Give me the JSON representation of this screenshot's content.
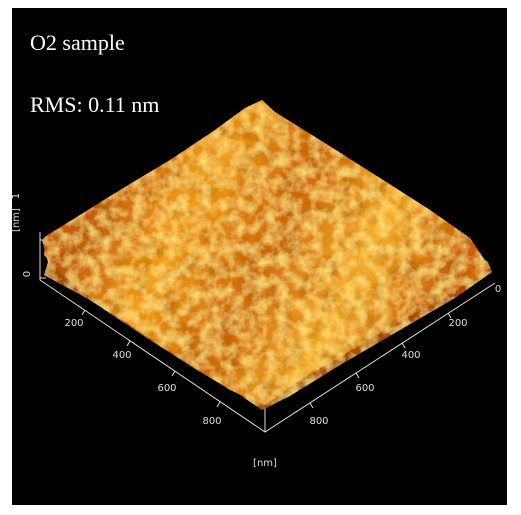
{
  "header": {
    "title": "O2 sample",
    "rms": "RMS: 0.11 nm"
  },
  "z_axis": {
    "unit": "[nm]",
    "ticks": [
      "0",
      "1"
    ]
  },
  "left_axis": {
    "ticks": [
      "200",
      "400",
      "600",
      "800"
    ]
  },
  "right_axis": {
    "ticks": [
      "0",
      "200",
      "400",
      "600",
      "800"
    ]
  },
  "footer": {
    "unit": "[nm]"
  }
}
